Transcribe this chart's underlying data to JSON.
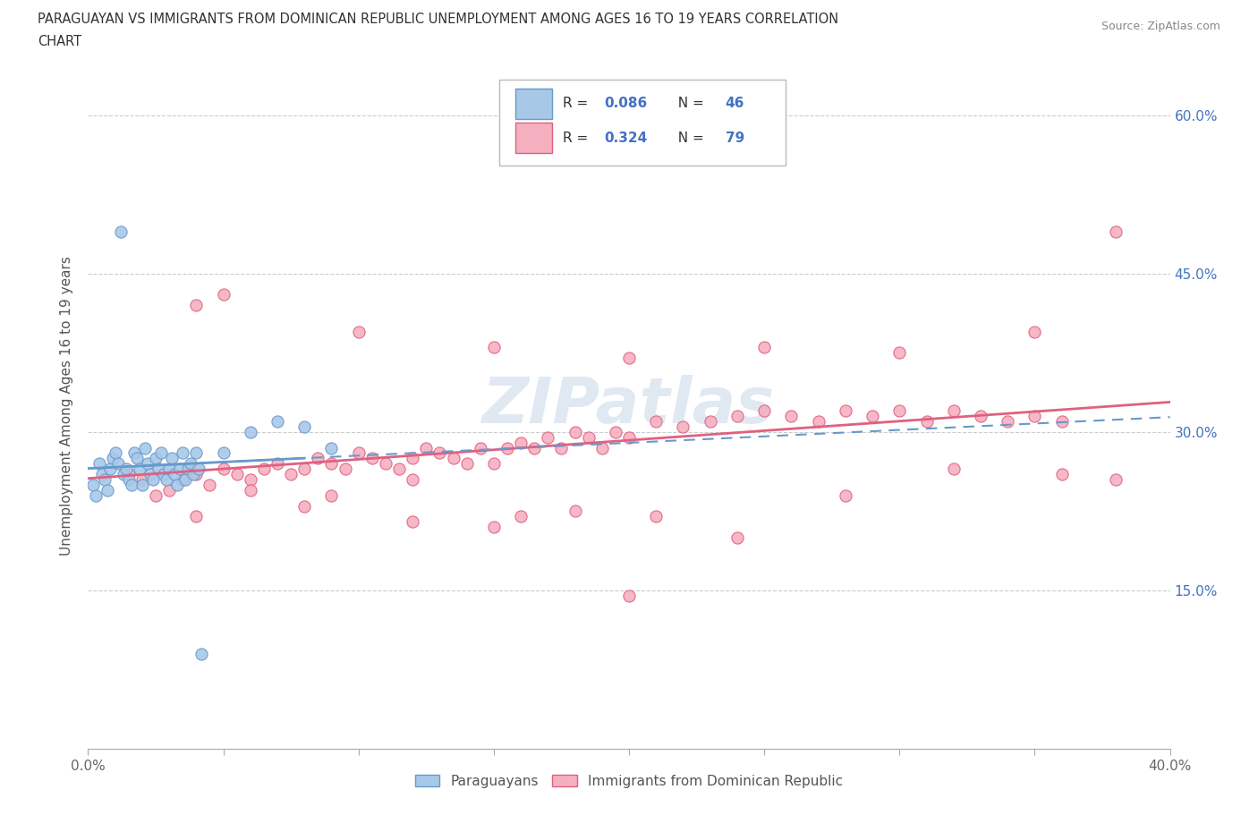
{
  "title_line1": "PARAGUAYAN VS IMMIGRANTS FROM DOMINICAN REPUBLIC UNEMPLOYMENT AMONG AGES 16 TO 19 YEARS CORRELATION",
  "title_line2": "CHART",
  "source_text": "Source: ZipAtlas.com",
  "ylabel": "Unemployment Among Ages 16 to 19 years",
  "xlim": [
    0.0,
    0.4
  ],
  "ylim": [
    0.0,
    0.65
  ],
  "x_tick_positions": [
    0.0,
    0.05,
    0.1,
    0.15,
    0.2,
    0.25,
    0.3,
    0.35,
    0.4
  ],
  "x_tick_labels": [
    "0.0%",
    "",
    "",
    "",
    "",
    "",
    "",
    "",
    "40.0%"
  ],
  "y_tick_positions": [
    0.0,
    0.15,
    0.3,
    0.45,
    0.6
  ],
  "y_tick_labels_right": [
    "",
    "15.0%",
    "30.0%",
    "45.0%",
    "60.0%"
  ],
  "paraguayan_R": 0.086,
  "paraguayan_N": 46,
  "dominican_R": 0.324,
  "dominican_N": 79,
  "paraguayan_color": "#a8c8e8",
  "dominican_color": "#f5b0c0",
  "paraguayan_line_color": "#6699cc",
  "dominican_line_color": "#e06080",
  "watermark": "ZIPatlas",
  "par_x": [
    0.002,
    0.003,
    0.004,
    0.005,
    0.006,
    0.007,
    0.008,
    0.009,
    0.01,
    0.011,
    0.012,
    0.013,
    0.014,
    0.015,
    0.016,
    0.017,
    0.018,
    0.019,
    0.02,
    0.021,
    0.022,
    0.023,
    0.024,
    0.025,
    0.026,
    0.027,
    0.028,
    0.029,
    0.03,
    0.031,
    0.032,
    0.033,
    0.034,
    0.035,
    0.036,
    0.037,
    0.038,
    0.039,
    0.04,
    0.041,
    0.042,
    0.05,
    0.06,
    0.07,
    0.08,
    0.09
  ],
  "par_y": [
    0.25,
    0.24,
    0.27,
    0.26,
    0.255,
    0.245,
    0.265,
    0.275,
    0.28,
    0.27,
    0.49,
    0.26,
    0.265,
    0.255,
    0.25,
    0.28,
    0.275,
    0.265,
    0.25,
    0.285,
    0.27,
    0.26,
    0.255,
    0.275,
    0.265,
    0.28,
    0.26,
    0.255,
    0.265,
    0.275,
    0.26,
    0.25,
    0.265,
    0.28,
    0.255,
    0.265,
    0.27,
    0.26,
    0.28,
    0.265,
    0.09,
    0.28,
    0.3,
    0.31,
    0.305,
    0.285
  ],
  "dom_x": [
    0.015,
    0.02,
    0.025,
    0.03,
    0.035,
    0.04,
    0.045,
    0.05,
    0.055,
    0.06,
    0.065,
    0.07,
    0.075,
    0.08,
    0.085,
    0.09,
    0.095,
    0.1,
    0.105,
    0.11,
    0.115,
    0.12,
    0.125,
    0.13,
    0.135,
    0.14,
    0.145,
    0.15,
    0.155,
    0.16,
    0.165,
    0.17,
    0.175,
    0.18,
    0.185,
    0.19,
    0.195,
    0.2,
    0.21,
    0.22,
    0.23,
    0.24,
    0.25,
    0.26,
    0.27,
    0.28,
    0.29,
    0.3,
    0.31,
    0.32,
    0.33,
    0.34,
    0.35,
    0.36,
    0.05,
    0.1,
    0.15,
    0.2,
    0.25,
    0.3,
    0.06,
    0.09,
    0.12,
    0.15,
    0.18,
    0.21,
    0.35,
    0.04,
    0.08,
    0.12,
    0.16,
    0.2,
    0.24,
    0.28,
    0.32,
    0.36,
    0.38,
    0.04,
    0.38
  ],
  "dom_y": [
    0.26,
    0.255,
    0.24,
    0.245,
    0.255,
    0.26,
    0.25,
    0.265,
    0.26,
    0.255,
    0.265,
    0.27,
    0.26,
    0.265,
    0.275,
    0.27,
    0.265,
    0.28,
    0.275,
    0.27,
    0.265,
    0.275,
    0.285,
    0.28,
    0.275,
    0.27,
    0.285,
    0.27,
    0.285,
    0.29,
    0.285,
    0.295,
    0.285,
    0.3,
    0.295,
    0.285,
    0.3,
    0.295,
    0.31,
    0.305,
    0.31,
    0.315,
    0.32,
    0.315,
    0.31,
    0.32,
    0.315,
    0.32,
    0.31,
    0.32,
    0.315,
    0.31,
    0.315,
    0.31,
    0.43,
    0.395,
    0.38,
    0.37,
    0.38,
    0.375,
    0.245,
    0.24,
    0.255,
    0.21,
    0.225,
    0.22,
    0.395,
    0.22,
    0.23,
    0.215,
    0.22,
    0.145,
    0.2,
    0.24,
    0.265,
    0.26,
    0.255,
    0.42,
    0.49
  ]
}
